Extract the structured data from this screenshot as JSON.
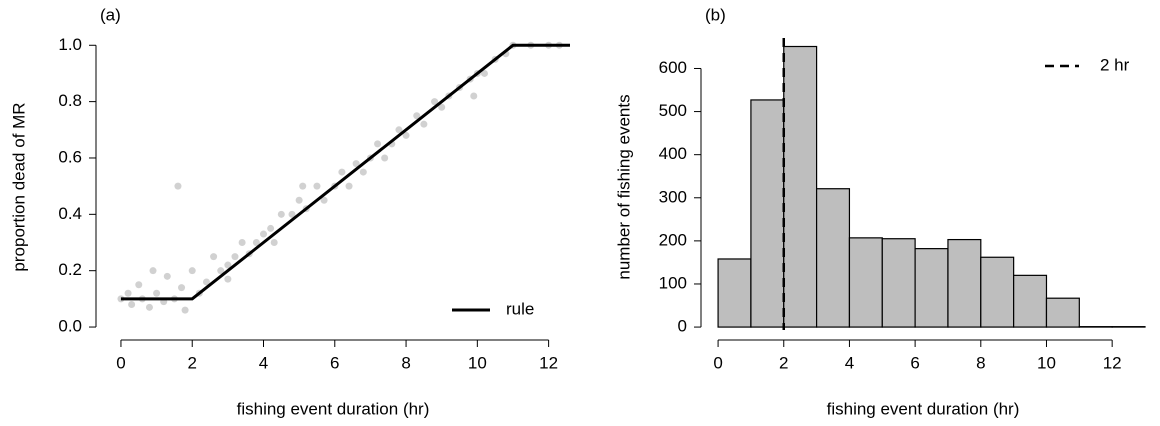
{
  "chart_data": [
    {
      "type": "scatter",
      "title": "(a)",
      "x_label": "fishing event duration (hr)",
      "y_label": "proportion dead of MR",
      "x": [
        0,
        0.2,
        0.3,
        0.5,
        0.6,
        0.8,
        0.9,
        1.0,
        1.2,
        1.3,
        1.5,
        1.6,
        1.7,
        1.8,
        2.0,
        2.2,
        2.4,
        2.6,
        2.8,
        3.0,
        3.2,
        3.4,
        3.6,
        3.8,
        4.0,
        4.2,
        4.5,
        4.8,
        5.0,
        5.2,
        5.5,
        5.7,
        6.0,
        6.2,
        6.4,
        6.6,
        6.8,
        7.0,
        7.2,
        7.4,
        7.6,
        7.8,
        8.0,
        8.3,
        8.5,
        8.8,
        9.0,
        9.2,
        9.5,
        9.8,
        10.0,
        10.2,
        10.5,
        10.8,
        11.0,
        11.5,
        12.0,
        12.3,
        4.3,
        3.0,
        5.1,
        9.9
      ],
      "y": [
        0.1,
        0.12,
        0.08,
        0.15,
        0.1,
        0.07,
        0.2,
        0.12,
        0.09,
        0.18,
        0.1,
        0.5,
        0.14,
        0.06,
        0.2,
        0.12,
        0.16,
        0.25,
        0.2,
        0.22,
        0.25,
        0.3,
        0.26,
        0.3,
        0.33,
        0.35,
        0.4,
        0.4,
        0.45,
        0.42,
        0.5,
        0.45,
        0.5,
        0.55,
        0.5,
        0.58,
        0.55,
        0.6,
        0.65,
        0.6,
        0.65,
        0.7,
        0.68,
        0.75,
        0.72,
        0.8,
        0.78,
        0.82,
        0.85,
        0.88,
        0.9,
        0.9,
        0.95,
        0.97,
        1.0,
        1.0,
        1.0,
        1.0,
        0.3,
        0.17,
        0.5,
        0.82
      ],
      "color": "#9a9a9a",
      "rule": {
        "name": "rule",
        "x": [
          0,
          2,
          11,
          12.6
        ],
        "y": [
          0.1,
          0.1,
          1,
          1
        ],
        "color": "#000000"
      },
      "legend": "bottom-right",
      "xlim": [
        -0.7,
        12.6
      ],
      "ylim": [
        -0.046,
        1.04
      ],
      "xticks": [
        0,
        2,
        4,
        6,
        8,
        10,
        12
      ],
      "yticks": [
        {
          "value": 0,
          "label": "0.0"
        },
        0.2,
        0.4,
        0.6,
        0.8,
        {
          "value": 1,
          "label": "1.0"
        }
      ]
    },
    {
      "type": "histogram",
      "title": "(b)",
      "x_label": "fishing event duration (hr)",
      "y_label": "number of fishing events",
      "bins": [
        0,
        1,
        2,
        3,
        4,
        5,
        6,
        7,
        8,
        9,
        10,
        11,
        12,
        13
      ],
      "counts": [
        158,
        527,
        651,
        321,
        207,
        205,
        182,
        203,
        162,
        120,
        67,
        1,
        1
      ],
      "color": "#bebebe",
      "vline": {
        "name": "2 hr",
        "x": 2,
        "color": "#000000"
      },
      "legend": "top-right",
      "xlim": [
        -0.52,
        13
      ],
      "ylim": [
        -30,
        680
      ],
      "xticks": [
        0,
        2,
        4,
        6,
        8,
        10,
        12
      ],
      "yticks": [
        0,
        100,
        200,
        300,
        400,
        500,
        600
      ]
    }
  ]
}
